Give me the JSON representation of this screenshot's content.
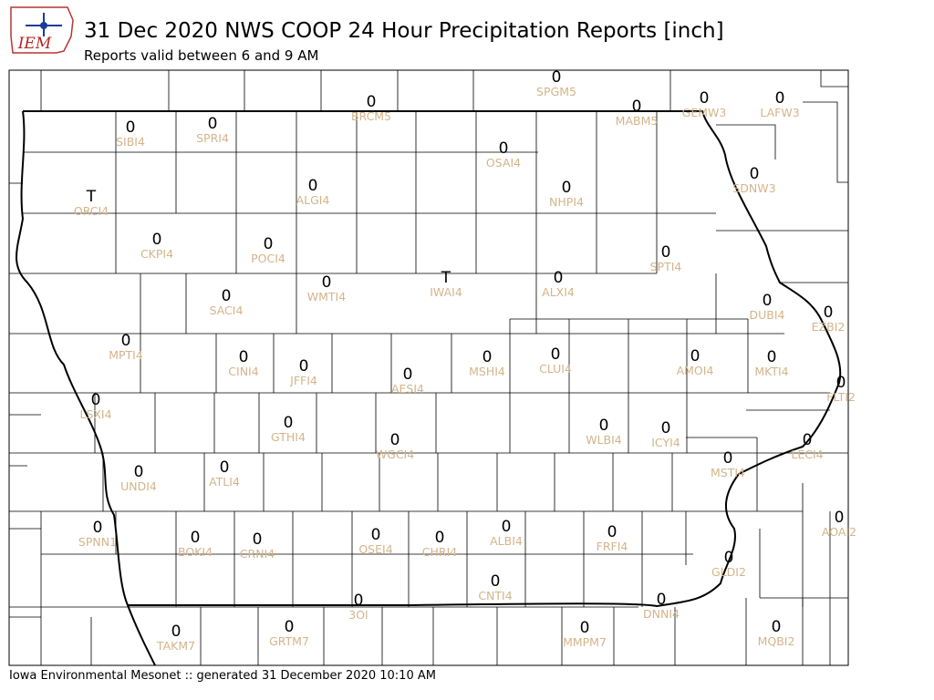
{
  "logo": {
    "text": "IEM"
  },
  "title": "31 Dec 2020 NWS COOP 24 Hour Precipitation Reports [inch]",
  "subtitle": "Reports valid between 6 and 9 AM",
  "footer": "Iowa Environmental Mesonet :: generated 31 December 2020 10:10 AM",
  "stations": [
    {
      "id": "SPGM5",
      "value": "0"
    },
    {
      "id": "BRCM5",
      "value": "0"
    },
    {
      "id": "MABM5",
      "value": "0"
    },
    {
      "id": "GEMW3",
      "value": "0"
    },
    {
      "id": "LAFW3",
      "value": "0"
    },
    {
      "id": "SIBI4",
      "value": "0"
    },
    {
      "id": "SPRI4",
      "value": "0"
    },
    {
      "id": "OSAI4",
      "value": "0"
    },
    {
      "id": "NHPI4",
      "value": "0"
    },
    {
      "id": "ALGI4",
      "value": "0"
    },
    {
      "id": "SDNW3",
      "value": "0"
    },
    {
      "id": "ORCI4",
      "value": "T"
    },
    {
      "id": "CKPI4",
      "value": "0"
    },
    {
      "id": "POCI4",
      "value": "0"
    },
    {
      "id": "SPTI4",
      "value": "0"
    },
    {
      "id": "IWAI4",
      "value": "T"
    },
    {
      "id": "ALXI4",
      "value": "0"
    },
    {
      "id": "WMTI4",
      "value": "0"
    },
    {
      "id": "SACI4",
      "value": "0"
    },
    {
      "id": "DUBI4",
      "value": "0"
    },
    {
      "id": "EZBI2",
      "value": "0"
    },
    {
      "id": "MPTI4",
      "value": "0"
    },
    {
      "id": "CINI4",
      "value": "0"
    },
    {
      "id": "JFFI4",
      "value": "0"
    },
    {
      "id": "MSHI4",
      "value": "0"
    },
    {
      "id": "CLUI4",
      "value": "0"
    },
    {
      "id": "AMOI4",
      "value": "0"
    },
    {
      "id": "MKTI4",
      "value": "0"
    },
    {
      "id": "AESI4",
      "value": "0"
    },
    {
      "id": "FLTI2",
      "value": "0"
    },
    {
      "id": "LSXI4",
      "value": "0"
    },
    {
      "id": "GTHI4",
      "value": "0"
    },
    {
      "id": "WLBI4",
      "value": "0"
    },
    {
      "id": "ICYI4",
      "value": "0"
    },
    {
      "id": "WGCI4",
      "value": "0"
    },
    {
      "id": "LECI4",
      "value": "0"
    },
    {
      "id": "MSTI4",
      "value": "0"
    },
    {
      "id": "ATLI4",
      "value": "0"
    },
    {
      "id": "UNDI4",
      "value": "0"
    },
    {
      "id": "AOAI2",
      "value": "0"
    },
    {
      "id": "SPNN1",
      "value": "0"
    },
    {
      "id": "OSEI4",
      "value": "0"
    },
    {
      "id": "ALBI4",
      "value": "0"
    },
    {
      "id": "FRFI4",
      "value": "0"
    },
    {
      "id": "BOKI4",
      "value": "0"
    },
    {
      "id": "CRNI4",
      "value": "0"
    },
    {
      "id": "CHRI4",
      "value": "0"
    },
    {
      "id": "GLDI2",
      "value": "0"
    },
    {
      "id": "CNTI4",
      "value": "0"
    },
    {
      "id": "3OI",
      "value": "0"
    },
    {
      "id": "DNNI4",
      "value": "0"
    },
    {
      "id": "TAKM7",
      "value": "0"
    },
    {
      "id": "GRTM7",
      "value": "0"
    },
    {
      "id": "MMPM7",
      "value": "0"
    },
    {
      "id": "MQBI2",
      "value": "0"
    }
  ]
}
